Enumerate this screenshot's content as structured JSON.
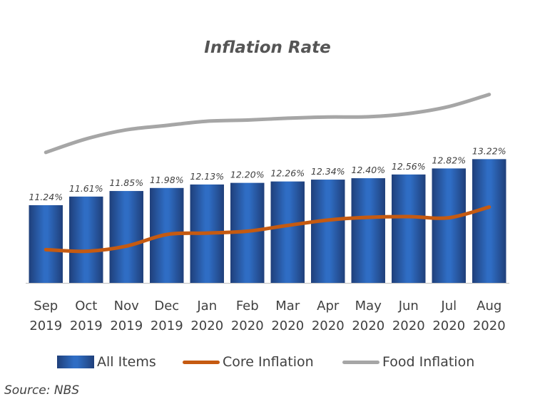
{
  "chart_data": {
    "type": "bar",
    "title": "Inflation Rate",
    "categories": [
      [
        "Sep",
        "2019"
      ],
      [
        "Oct",
        "2019"
      ],
      [
        "Nov",
        "2019"
      ],
      [
        "Dec",
        "2019"
      ],
      [
        "Jan",
        "2020"
      ],
      [
        "Feb",
        "2020"
      ],
      [
        "Mar",
        "2020"
      ],
      [
        "Apr",
        "2020"
      ],
      [
        "May",
        "2020"
      ],
      [
        "Jun",
        "2020"
      ],
      [
        "Jul",
        "2020"
      ],
      [
        "Aug",
        "2020"
      ]
    ],
    "series": [
      {
        "name": "All Items",
        "type": "bar",
        "color": "#2f6dc4",
        "values": [
          11.24,
          11.61,
          11.85,
          11.98,
          12.13,
          12.2,
          12.26,
          12.34,
          12.4,
          12.56,
          12.82,
          13.22
        ],
        "labels": [
          "11.24%",
          "11.61%",
          "11.85%",
          "11.98%",
          "12.13%",
          "12.20%",
          "12.26%",
          "12.34%",
          "12.40%",
          "12.56%",
          "12.82%",
          "13.22%"
        ]
      },
      {
        "name": "Core Inflation",
        "type": "line",
        "color": "#c55a11",
        "values": [
          9.33,
          9.26,
          9.48,
          9.98,
          10.04,
          10.12,
          10.37,
          10.6,
          10.72,
          10.75,
          10.7,
          11.16
        ]
      },
      {
        "name": "Food Inflation",
        "type": "line",
        "color": "#a6a6a6",
        "values": [
          13.51,
          14.09,
          14.48,
          14.67,
          14.85,
          14.9,
          14.98,
          15.03,
          15.04,
          15.18,
          15.48,
          16.0
        ]
      }
    ],
    "ylim": [
      7.9,
      16.6
    ],
    "grid": false,
    "legend_position": "bottom",
    "xlabel": "",
    "ylabel": ""
  },
  "source": "Source: NBS"
}
